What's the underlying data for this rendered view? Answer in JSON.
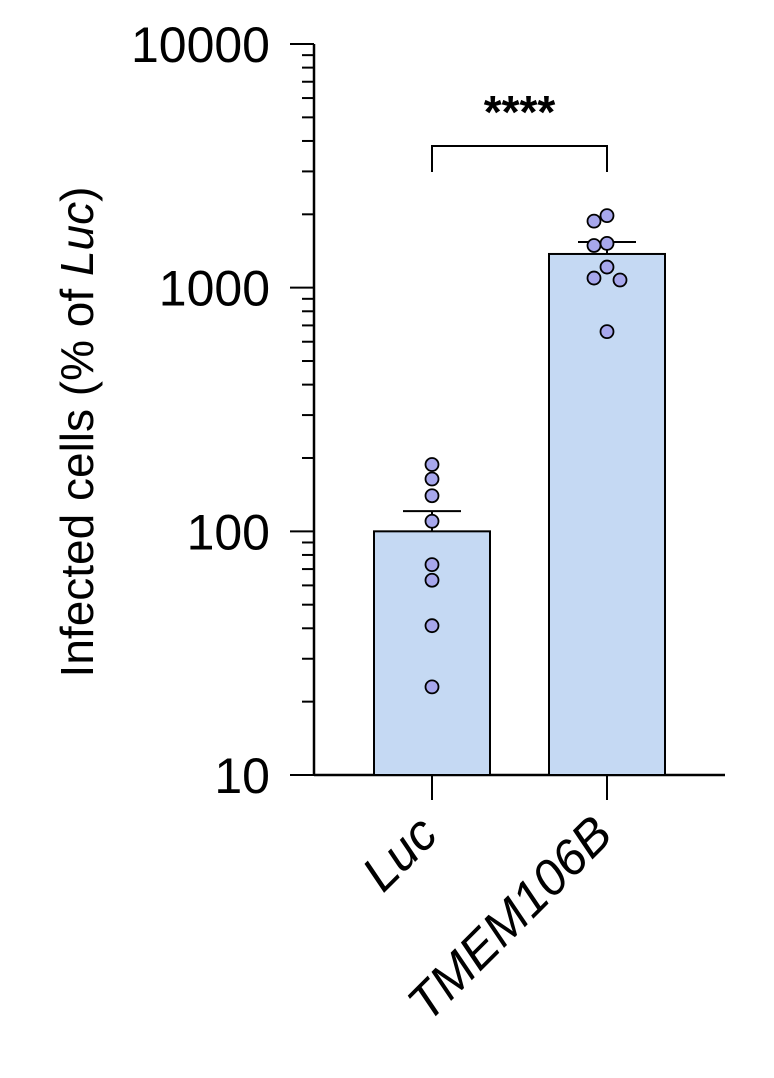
{
  "chart_data": {
    "type": "bar",
    "categories": [
      "Luc",
      "TMEM106B"
    ],
    "values": [
      100,
      1375
    ],
    "error_upper": [
      121,
      1540
    ],
    "points": [
      [
        188,
        164,
        140,
        110,
        73,
        63,
        41,
        23
      ],
      [
        1975,
        1875,
        1520,
        1490,
        1215,
        1095,
        1075,
        660
      ]
    ],
    "ylabel": {
      "main": "Infected cells (% of ",
      "italic": "Luc",
      "close": ")"
    },
    "yscale": "log",
    "ylim": [
      10,
      10000
    ],
    "yticks": [
      "10",
      "100",
      "1000",
      "10000"
    ],
    "significance": "****",
    "grid": false,
    "colors": {
      "bar_fill": "#c5d9f3",
      "bar_stroke": "#000000",
      "point_fill": "#a7a7ec",
      "point_stroke": "#000000"
    }
  }
}
